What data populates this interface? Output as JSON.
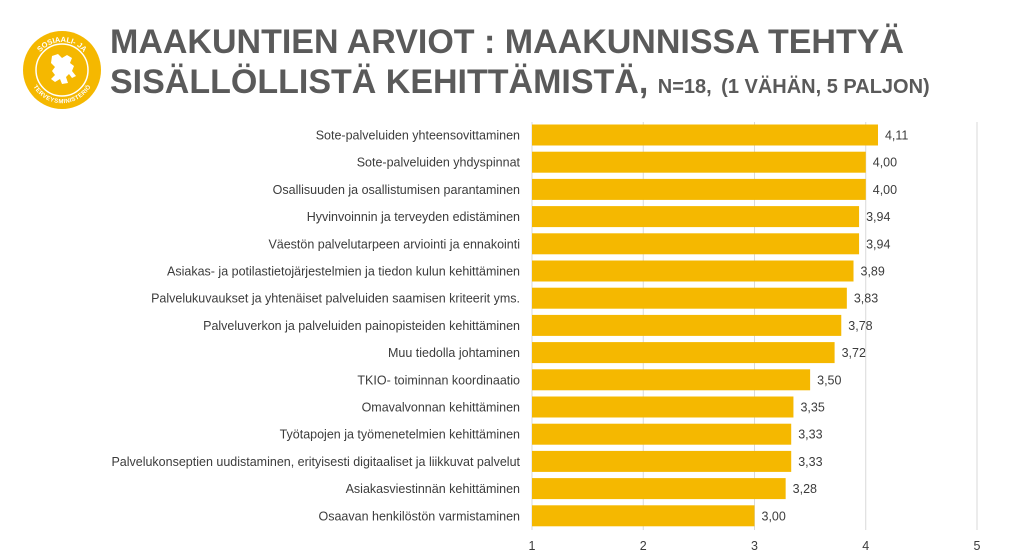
{
  "logo": {
    "text_top": "SOSIAALI- JA",
    "text_bottom": "TERVEYSMINISTERIÖ",
    "color": "#f5b800"
  },
  "title": {
    "line1": "MAAKUNTIEN ARVIOT : MAAKUNNISSA TEHTYÄ",
    "line2_main": "SISÄLLÖLLISTÄ KEHITTÄMISTÄ,",
    "line2_n": "N=18,",
    "line2_scale": "(1 VÄHÄN, 5 PALJON)"
  },
  "chart_data": {
    "type": "bar",
    "orientation": "horizontal",
    "bar_color": "#f5b800",
    "categories": [
      "Sote-palveluiden yhteensovittaminen",
      "Sote-palveluiden yhdyspinnat",
      "Osallisuuden ja osallistumisen parantaminen",
      "Hyvinvoinnin ja terveyden edistäminen",
      "Väestön palvelutarpeen arviointi ja ennakointi",
      "Asiakas- ja potilastietojärjestelmien ja tiedon kulun kehittäminen",
      "Palvelukuvaukset ja yhtenäiset palveluiden saamisen kriteerit yms.",
      "Palveluverkon ja palveluiden painopisteiden kehittäminen",
      "Muu tiedolla johtaminen",
      "TKIO- toiminnan koordinaatio",
      "Omavalvonnan kehittäminen",
      "Työtapojen ja työmenetelmien kehittäminen",
      "Palvelukonseptien uudistaminen, erityisesti digitaaliset ja liikkuvat palvelut",
      "Asiakasviestinnän kehittäminen",
      "Osaavan henkilöstön varmistaminen"
    ],
    "values": [
      4.11,
      4.0,
      4.0,
      3.94,
      3.94,
      3.89,
      3.83,
      3.78,
      3.72,
      3.5,
      3.35,
      3.33,
      3.33,
      3.28,
      3.0
    ],
    "value_labels": [
      "4,11",
      "4,00",
      "4,00",
      "3,94",
      "3,94",
      "3,89",
      "3,83",
      "3,78",
      "3,72",
      "3,50",
      "3,35",
      "3,33",
      "3,33",
      "3,28",
      "3,00"
    ],
    "xlim": [
      1,
      5
    ],
    "xticks": [
      "1",
      "2",
      "3",
      "4",
      "5"
    ],
    "grid": true
  }
}
